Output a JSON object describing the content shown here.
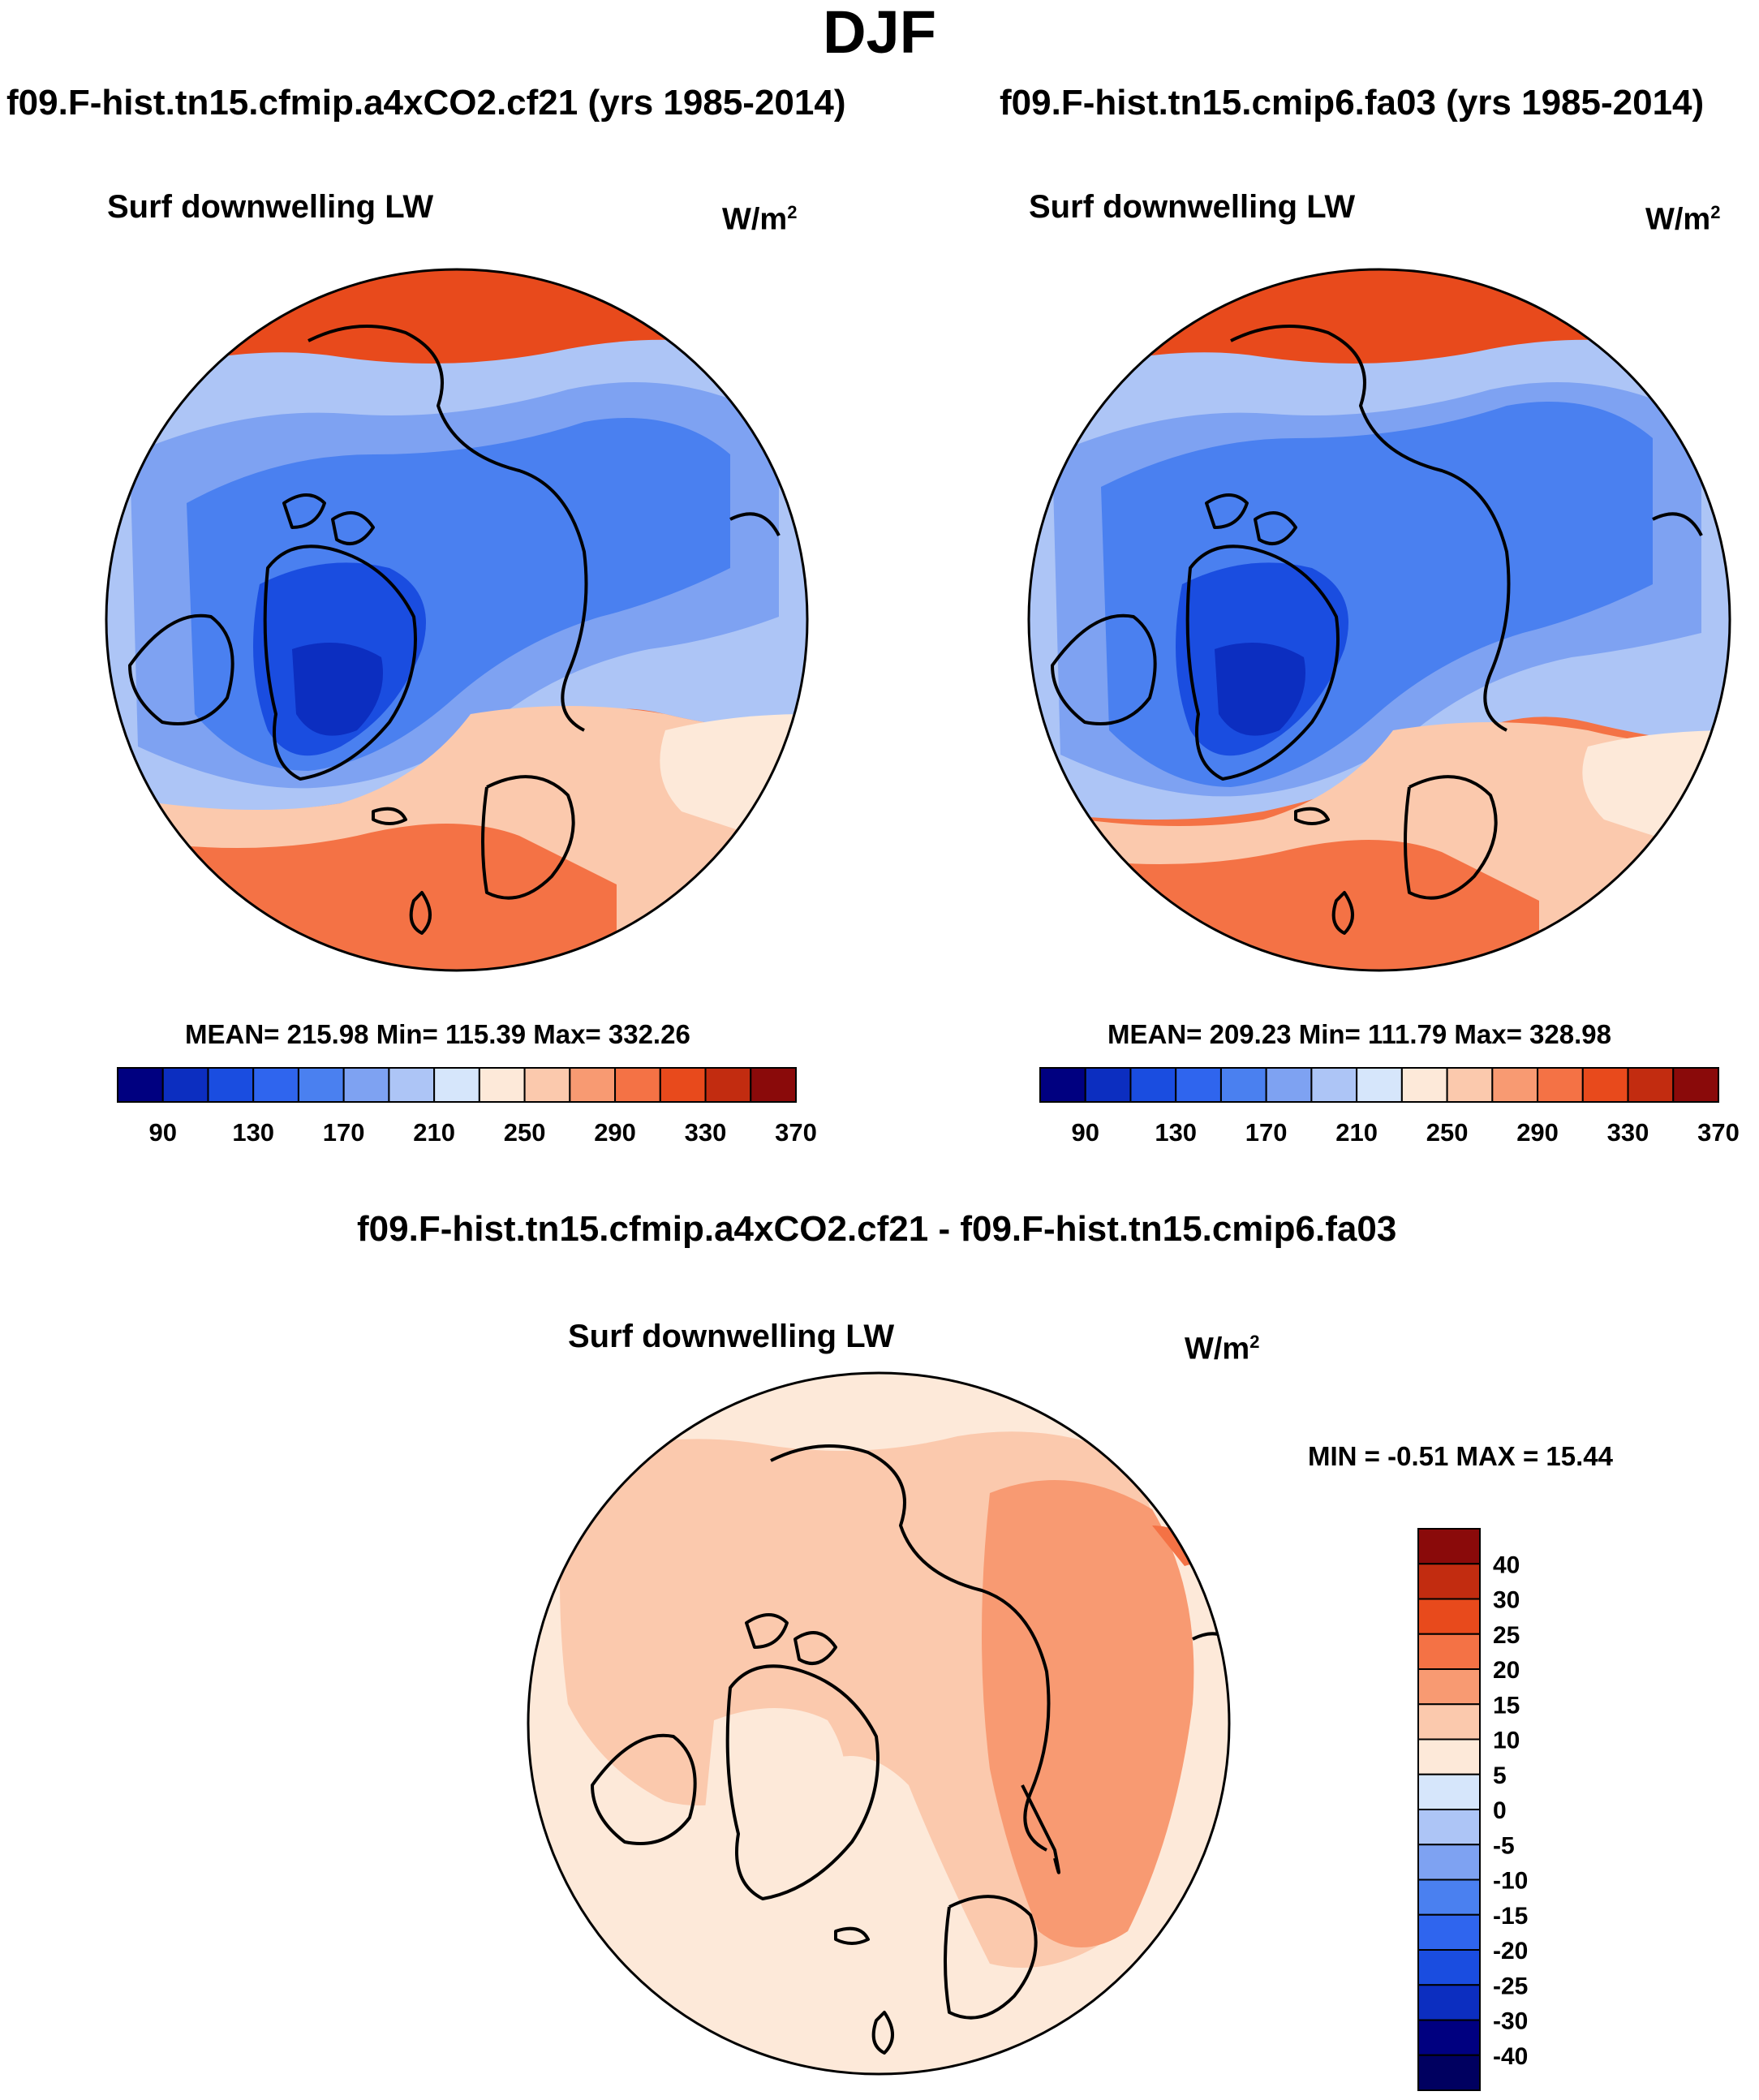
{
  "figure_title": "DJF",
  "panels": {
    "left": {
      "case_title": "f09.F-hist.tn15.cfmip.a4xCO2.cf21 (yrs 1985-2014)",
      "variable": "Surf downwelling LW",
      "units_base": "W/m",
      "units_exp": "2",
      "stats": "MEAN= 215.98  Min= 115.39  Max= 332.26"
    },
    "right": {
      "case_title": "f09.F-hist.tn15.cmip6.fa03 (yrs 1985-2014)",
      "variable": "Surf downwelling LW",
      "units_base": "W/m",
      "units_exp": "2",
      "stats": "MEAN= 209.23  Min= 111.79  Max= 328.98"
    },
    "diff": {
      "case_title": "f09.F-hist.tn15.cfmip.a4xCO2.cf21 - f09.F-hist.tn15.cmip6.fa03",
      "variable": "Surf downwelling LW",
      "units_base": "W/m",
      "units_exp": "2",
      "stats": "MIN =  -0.51 MAX =  15.44"
    }
  },
  "chart_data": [
    {
      "type": "heatmap",
      "projection": "north polar stereographic",
      "title": "f09.F-hist.tn15.cfmip.a4xCO2.cf21 (yrs 1985-2014)",
      "variable": "Surf downwelling LW",
      "units": "W/m2",
      "mean": 215.98,
      "min": 115.39,
      "max": 332.26,
      "colorbar_levels": [
        90,
        110,
        130,
        150,
        170,
        190,
        210,
        230,
        250,
        270,
        290,
        310,
        330,
        350,
        370
      ],
      "colorbar_labels": [
        "90",
        "130",
        "170",
        "210",
        "250",
        "290",
        "330",
        "370"
      ],
      "colors": [
        "#000080",
        "#0c2ec0",
        "#1a4de0",
        "#2f65ee",
        "#4a80f0",
        "#7ea2f2",
        "#adc5f6",
        "#d6e6fb",
        "#fde9d9",
        "#fbc9ad",
        "#f89a72",
        "#f47245",
        "#e84a1c",
        "#c22c10",
        "#8a0a0a"
      ]
    },
    {
      "type": "heatmap",
      "projection": "north polar stereographic",
      "title": "f09.F-hist.tn15.cmip6.fa03 (yrs 1985-2014)",
      "variable": "Surf downwelling LW",
      "units": "W/m2",
      "mean": 209.23,
      "min": 111.79,
      "max": 328.98,
      "colorbar_levels": [
        90,
        110,
        130,
        150,
        170,
        190,
        210,
        230,
        250,
        270,
        290,
        310,
        330,
        350,
        370
      ],
      "colorbar_labels": [
        "90",
        "130",
        "170",
        "210",
        "250",
        "290",
        "330",
        "370"
      ],
      "colors": [
        "#000080",
        "#0c2ec0",
        "#1a4de0",
        "#2f65ee",
        "#4a80f0",
        "#7ea2f2",
        "#adc5f6",
        "#d6e6fb",
        "#fde9d9",
        "#fbc9ad",
        "#f89a72",
        "#f47245",
        "#e84a1c",
        "#c22c10",
        "#8a0a0a"
      ]
    },
    {
      "type": "heatmap",
      "projection": "north polar stereographic",
      "title": "f09.F-hist.tn15.cfmip.a4xCO2.cf21 - f09.F-hist.tn15.cmip6.fa03",
      "variable": "Surf downwelling LW",
      "units": "W/m2",
      "min": -0.51,
      "max": 15.44,
      "colorbar_levels": [
        -40,
        -30,
        -25,
        -20,
        -15,
        -10,
        -5,
        0,
        5,
        10,
        15,
        20,
        25,
        30,
        40
      ],
      "colorbar_labels": [
        "40",
        "30",
        "25",
        "20",
        "15",
        "10",
        "5",
        "0",
        "-5",
        "-10",
        "-15",
        "-20",
        "-25",
        "-30",
        "-40"
      ],
      "colors_top_to_bottom": [
        "#8a0a0a",
        "#c22c10",
        "#e84a1c",
        "#f47245",
        "#f89a72",
        "#fbc9ad",
        "#fde9d9",
        "#d6e6fb",
        "#adc5f6",
        "#7ea2f2",
        "#4a80f0",
        "#2f65ee",
        "#1a4de0",
        "#0c2ec0",
        "#000080",
        "#000060"
      ]
    }
  ]
}
